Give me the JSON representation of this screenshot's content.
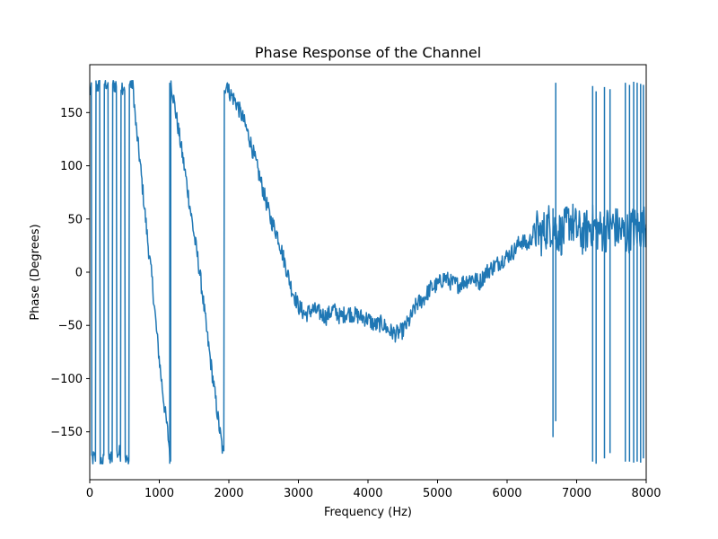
{
  "chart_data": {
    "type": "line",
    "title": "Phase Response of the Channel",
    "xlabel": "Frequency (Hz)",
    "ylabel": "Phase (Degrees)",
    "xlim": [
      0,
      8000
    ],
    "ylim": [
      -195,
      195
    ],
    "x_ticks": [
      0,
      1000,
      2000,
      3000,
      4000,
      5000,
      6000,
      7000,
      8000
    ],
    "x_tick_labels": [
      "0",
      "1000",
      "2000",
      "3000",
      "4000",
      "5000",
      "6000",
      "7000",
      "8000"
    ],
    "y_ticks": [
      -150,
      -100,
      -50,
      0,
      50,
      100,
      150
    ],
    "y_tick_labels": [
      "−150",
      "−100",
      "−50",
      "0",
      "50",
      "100",
      "150"
    ],
    "grid": false,
    "legend": null,
    "series": [
      {
        "color": "#1f77b4",
        "trend_x": [
          0,
          60,
          120,
          180,
          240,
          300,
          360,
          420,
          480,
          540,
          600,
          620,
          660,
          720,
          780,
          840,
          900,
          960,
          1020,
          1080,
          1120,
          1160,
          1170,
          1200,
          1260,
          1320,
          1380,
          1440,
          1500,
          1560,
          1620,
          1680,
          1740,
          1800,
          1860,
          1920,
          1950,
          1980,
          2000,
          2100,
          2200,
          2300,
          2400,
          2500,
          2600,
          2700,
          2800,
          2900,
          3000,
          3100,
          3200,
          3300,
          3400,
          3500,
          3600,
          3700,
          3800,
          3900,
          4000,
          4100,
          4200,
          4300,
          4400,
          4500,
          4600,
          4700,
          4800,
          4900,
          5000,
          5100,
          5200,
          5300,
          5400,
          5500,
          5600,
          5700,
          5800,
          5900,
          6000,
          6100,
          6200,
          6300,
          6400,
          6500,
          6600,
          6700,
          6800,
          6900,
          7000,
          7100,
          7200,
          7300,
          7400,
          7500,
          7600,
          7700,
          7800,
          7900,
          8000
        ],
        "trend_y": [
          170,
          -175,
          175,
          -178,
          178,
          -175,
          176,
          -170,
          175,
          -178,
          177,
          178,
          140,
          105,
          65,
          25,
          -10,
          -55,
          -95,
          -130,
          -150,
          -175,
          178,
          165,
          140,
          115,
          90,
          62,
          35,
          10,
          -20,
          -55,
          -85,
          -115,
          -145,
          -172,
          175,
          178,
          170,
          160,
          145,
          125,
          100,
          75,
          50,
          35,
          10,
          -15,
          -32,
          -40,
          -35,
          -38,
          -42,
          -35,
          -42,
          -38,
          -40,
          -42,
          -44,
          -50,
          -48,
          -55,
          -58,
          -55,
          -45,
          -30,
          -25,
          -15,
          -12,
          -5,
          -10,
          -12,
          -8,
          -5,
          -10,
          0,
          5,
          10,
          15,
          20,
          30,
          25,
          40,
          35,
          45,
          40,
          35,
          50,
          40,
          35,
          45,
          40,
          38,
          45,
          40,
          35,
          42,
          40,
          45
        ]
      }
    ],
    "noise_band_degrees": 8,
    "extra_spike_segments": [
      {
        "x": 1150,
        "y1": -180,
        "y2": 178
      },
      {
        "x": 6660,
        "y1": -155,
        "y2": 60
      },
      {
        "x": 6700,
        "y1": 178,
        "y2": -140
      },
      {
        "x": 7230,
        "y1": -178,
        "y2": 175
      },
      {
        "x": 7280,
        "y1": 170,
        "y2": -180
      },
      {
        "x": 7400,
        "y1": -175,
        "y2": 174
      },
      {
        "x": 7480,
        "y1": -170,
        "y2": 172
      },
      {
        "x": 7700,
        "y1": 178,
        "y2": -178
      },
      {
        "x": 7760,
        "y1": -178,
        "y2": 176
      },
      {
        "x": 7820,
        "y1": 179,
        "y2": -179
      },
      {
        "x": 7870,
        "y1": -178,
        "y2": 178
      },
      {
        "x": 7920,
        "y1": 177,
        "y2": -179
      },
      {
        "x": 7960,
        "y1": -175,
        "y2": 176
      }
    ]
  }
}
